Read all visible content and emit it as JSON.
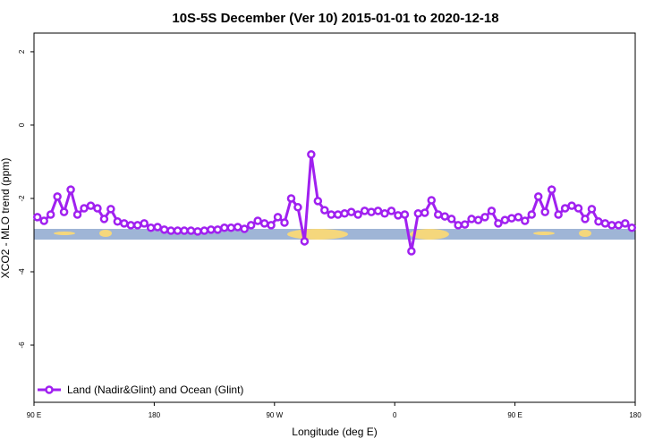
{
  "chart_data": {
    "type": "line",
    "title": "10S-5S December (Ver 10)   2015-01-01 to 2020-12-18",
    "xlabel": "Longitude (deg E)",
    "ylabel": "XCO2 - MLO trend (ppm)",
    "xlim": [
      90,
      540
    ],
    "ylim": [
      -7.56,
      2.51
    ],
    "xticks": [
      {
        "value": 90,
        "label": "90 E"
      },
      180,
      {
        "value": 270,
        "label": "90 W"
      },
      {
        "value": 360,
        "label": "0"
      },
      {
        "value": 450,
        "label": "90 E"
      },
      {
        "value": 540,
        "label": "180"
      }
    ],
    "yticks": [
      -6,
      -4,
      -2,
      0,
      2
    ],
    "legend": "bottom-left",
    "x": [
      92.5,
      97.5,
      102.5,
      107.5,
      112.5,
      117.5,
      122.5,
      127.5,
      132.5,
      137.5,
      142.5,
      147.5,
      152.5,
      157.5,
      162.5,
      167.5,
      172.5,
      177.5,
      182.5,
      187.5,
      192.5,
      197.5,
      202.5,
      207.5,
      212.5,
      217.5,
      222.5,
      227.5,
      232.5,
      237.5,
      242.5,
      247.5,
      252.5,
      257.5,
      262.5,
      267.5,
      272.5,
      277.5,
      282.5,
      287.5,
      292.5,
      297.5,
      302.5,
      307.5,
      312.5,
      317.5,
      322.5,
      327.5,
      332.5,
      337.5,
      342.5,
      347.5,
      352.5,
      357.5,
      362.5,
      367.5,
      372.5,
      377.5,
      382.5,
      387.5,
      392.5,
      397.5,
      402.5,
      407.5,
      412.5,
      417.5,
      422.5,
      427.5,
      432.5,
      437.5,
      442.5,
      447.5,
      452.5,
      457.5,
      462.5,
      467.5,
      472.5,
      477.5,
      482.5,
      487.5,
      492.5,
      497.5,
      502.5,
      507.5,
      512.5,
      517.5,
      522.5,
      527.5,
      532.5,
      537.5
    ],
    "series": [
      {
        "name": "Land (Nadir&Glint) and Ocean (Glint)",
        "color": "#a020f0",
        "values": [
          -2.51,
          -2.61,
          -2.44,
          -1.95,
          -2.37,
          -1.76,
          -2.44,
          -2.27,
          -2.2,
          -2.27,
          -2.56,
          -2.29,
          -2.63,
          -2.68,
          -2.73,
          -2.73,
          -2.68,
          -2.8,
          -2.78,
          -2.85,
          -2.88,
          -2.88,
          -2.88,
          -2.88,
          -2.9,
          -2.88,
          -2.85,
          -2.85,
          -2.8,
          -2.8,
          -2.78,
          -2.83,
          -2.73,
          -2.61,
          -2.68,
          -2.73,
          -2.51,
          -2.66,
          -2.0,
          -2.24,
          -3.17,
          -0.8,
          -2.07,
          -2.32,
          -2.44,
          -2.44,
          -2.41,
          -2.37,
          -2.44,
          -2.34,
          -2.37,
          -2.34,
          -2.41,
          -2.34,
          -2.46,
          -2.44,
          -3.44,
          -2.41,
          -2.39,
          -2.05,
          -2.44,
          -2.49,
          -2.56,
          -2.73,
          -2.71,
          -2.56,
          -2.59,
          -2.51,
          -2.34,
          -2.68,
          -2.59,
          -2.54,
          -2.51,
          -2.61,
          -2.44,
          -1.95,
          -2.37,
          -1.76,
          -2.44,
          -2.27,
          -2.2,
          -2.27,
          -2.56,
          -2.29,
          -2.63,
          -2.68,
          -2.73,
          -2.73,
          -2.68,
          -2.8
        ]
      }
    ]
  }
}
